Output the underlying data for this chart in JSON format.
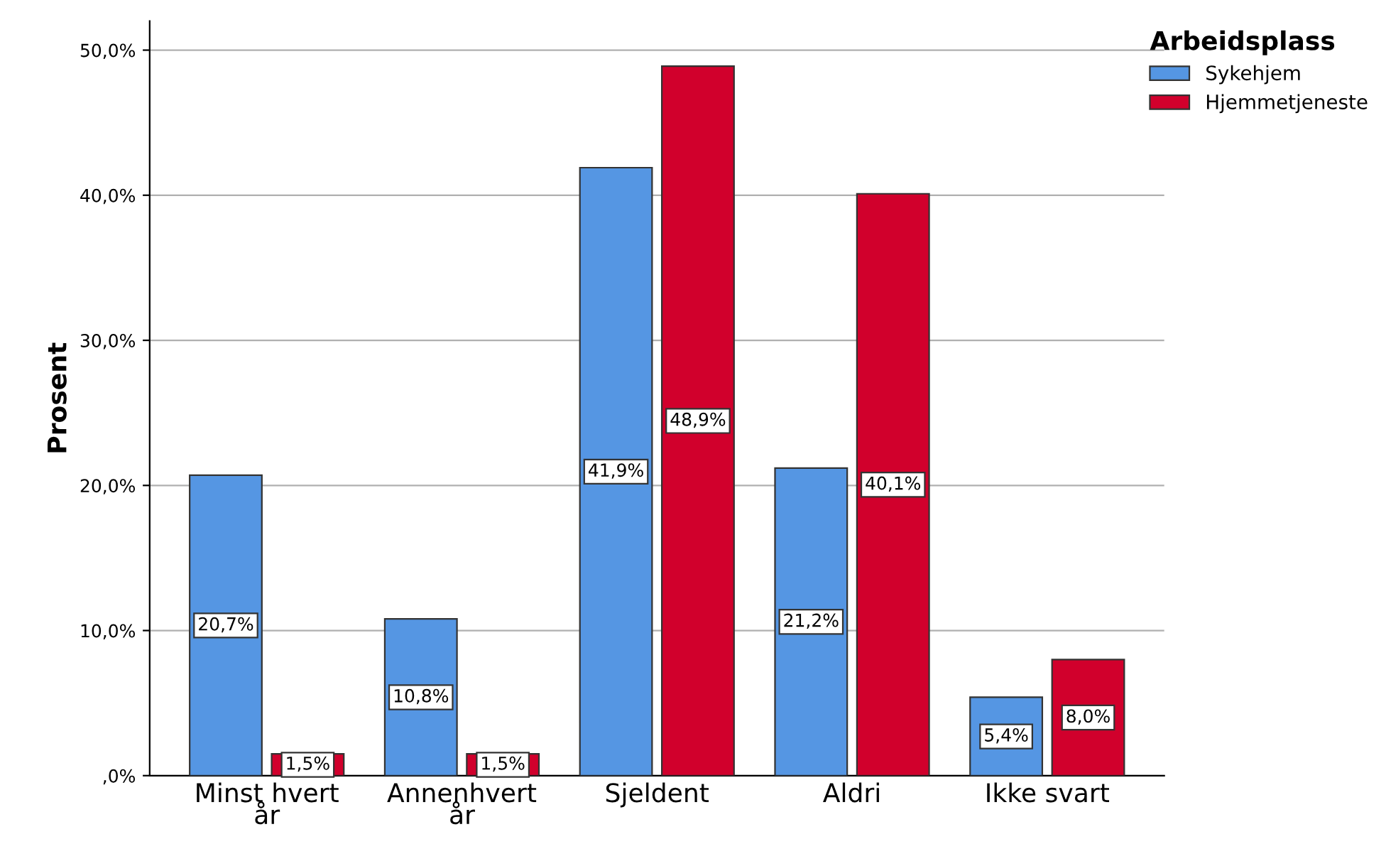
{
  "chart_data": {
    "type": "bar",
    "ylabel": "Prosent",
    "legend_title": "Arbeidsplass",
    "categories": [
      "Minst hvert\når",
      "Annenhvert\når",
      "Sjeldent",
      "Aldri",
      "Ikke svart"
    ],
    "series": [
      {
        "name": "Sykehjem",
        "color": "#5596e3",
        "values": [
          20.7,
          10.8,
          41.9,
          21.2,
          5.4
        ],
        "value_labels": [
          "20,7%",
          "10,8%",
          "41,9%",
          "21,2%",
          "5,4%"
        ]
      },
      {
        "name": "Hjemmetjeneste",
        "color": "#d1002c",
        "values": [
          1.5,
          1.5,
          48.9,
          40.1,
          8.0
        ],
        "value_labels": [
          "1,5%",
          "1,5%",
          "48,9%",
          "40,1%",
          "8,0%"
        ]
      }
    ],
    "ylim": [
      0,
      52
    ],
    "yticks": [
      {
        "value": 0,
        "label": ",0%"
      },
      {
        "value": 10,
        "label": "10,0%"
      },
      {
        "value": 20,
        "label": "20,0%"
      },
      {
        "value": 30,
        "label": "30,0%"
      },
      {
        "value": 40,
        "label": "40,0%"
      },
      {
        "value": 50,
        "label": "50,0%"
      }
    ],
    "grid": "y",
    "legend": "top right"
  }
}
